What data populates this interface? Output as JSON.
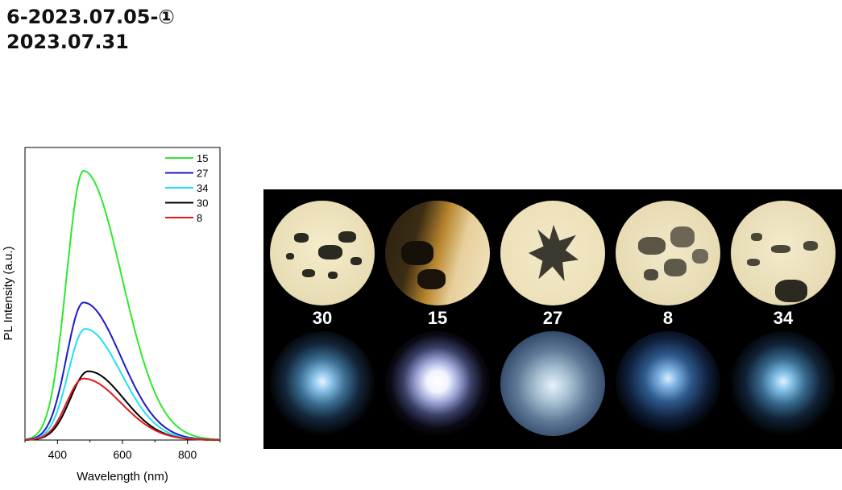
{
  "heading": {
    "line1": "6-2023.07.05-①",
    "line2": "2023.07.31"
  },
  "chart_data": {
    "type": "line",
    "xlabel": "Wavelength (nm)",
    "ylabel": "PL Intensity (a.u.)",
    "xlim": [
      300,
      900
    ],
    "ylim": [
      0,
      1.0
    ],
    "xticks": [
      400,
      600,
      800
    ],
    "legend_position": "top-right",
    "grid": false,
    "series": [
      {
        "name": "15",
        "color": "#2ee82e",
        "peak": 0.92,
        "center": 480,
        "sl": 52,
        "sr": 118
      },
      {
        "name": "27",
        "color": "#1a1acc",
        "peak": 0.47,
        "center": 480,
        "sl": 52,
        "sr": 115
      },
      {
        "name": "34",
        "color": "#22e0f0",
        "peak": 0.38,
        "center": 485,
        "sl": 52,
        "sr": 110
      },
      {
        "name": "30",
        "color": "#000000",
        "peak": 0.235,
        "center": 495,
        "sl": 55,
        "sr": 108
      },
      {
        "name": "8",
        "color": "#e01818",
        "peak": 0.21,
        "center": 480,
        "sl": 52,
        "sr": 115
      }
    ]
  },
  "samples": [
    {
      "label": "30"
    },
    {
      "label": "15"
    },
    {
      "label": "27"
    },
    {
      "label": "8"
    },
    {
      "label": "34"
    }
  ]
}
